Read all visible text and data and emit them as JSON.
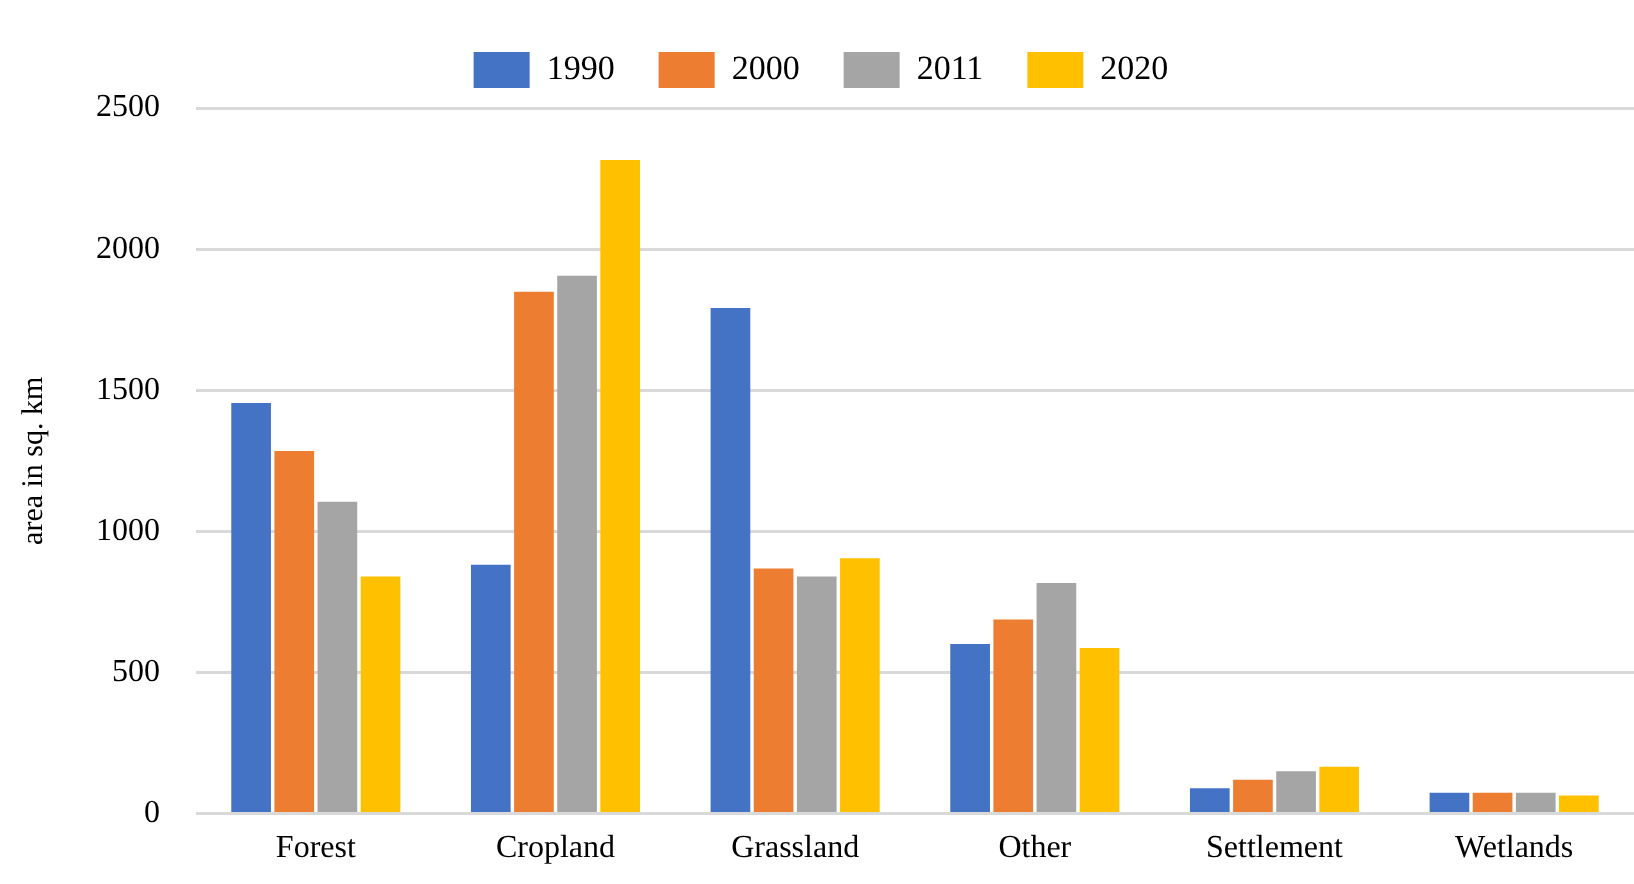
{
  "chart_data": {
    "type": "bar",
    "ylabel": "area in sq. km",
    "categories": [
      "Forest",
      "Cropland",
      "Grassland",
      "Other",
      "Settlement",
      "Wetlands"
    ],
    "series": [
      {
        "name": "1990",
        "color": "#4472c4",
        "values": [
          1455,
          882,
          1791,
          601,
          90,
          74
        ]
      },
      {
        "name": "2000",
        "color": "#ed7d31",
        "values": [
          1285,
          1849,
          868,
          688,
          120,
          74
        ]
      },
      {
        "name": "2011",
        "color": "#a5a5a5",
        "values": [
          1105,
          1906,
          840,
          817,
          150,
          74
        ]
      },
      {
        "name": "2020",
        "color": "#ffc000",
        "values": [
          840,
          2316,
          905,
          587,
          166,
          64
        ]
      }
    ],
    "ylim": [
      0,
      2500
    ],
    "yticks": [
      0,
      500,
      1000,
      1500,
      2000,
      2500
    ],
    "grid": "y",
    "legend": "top"
  }
}
